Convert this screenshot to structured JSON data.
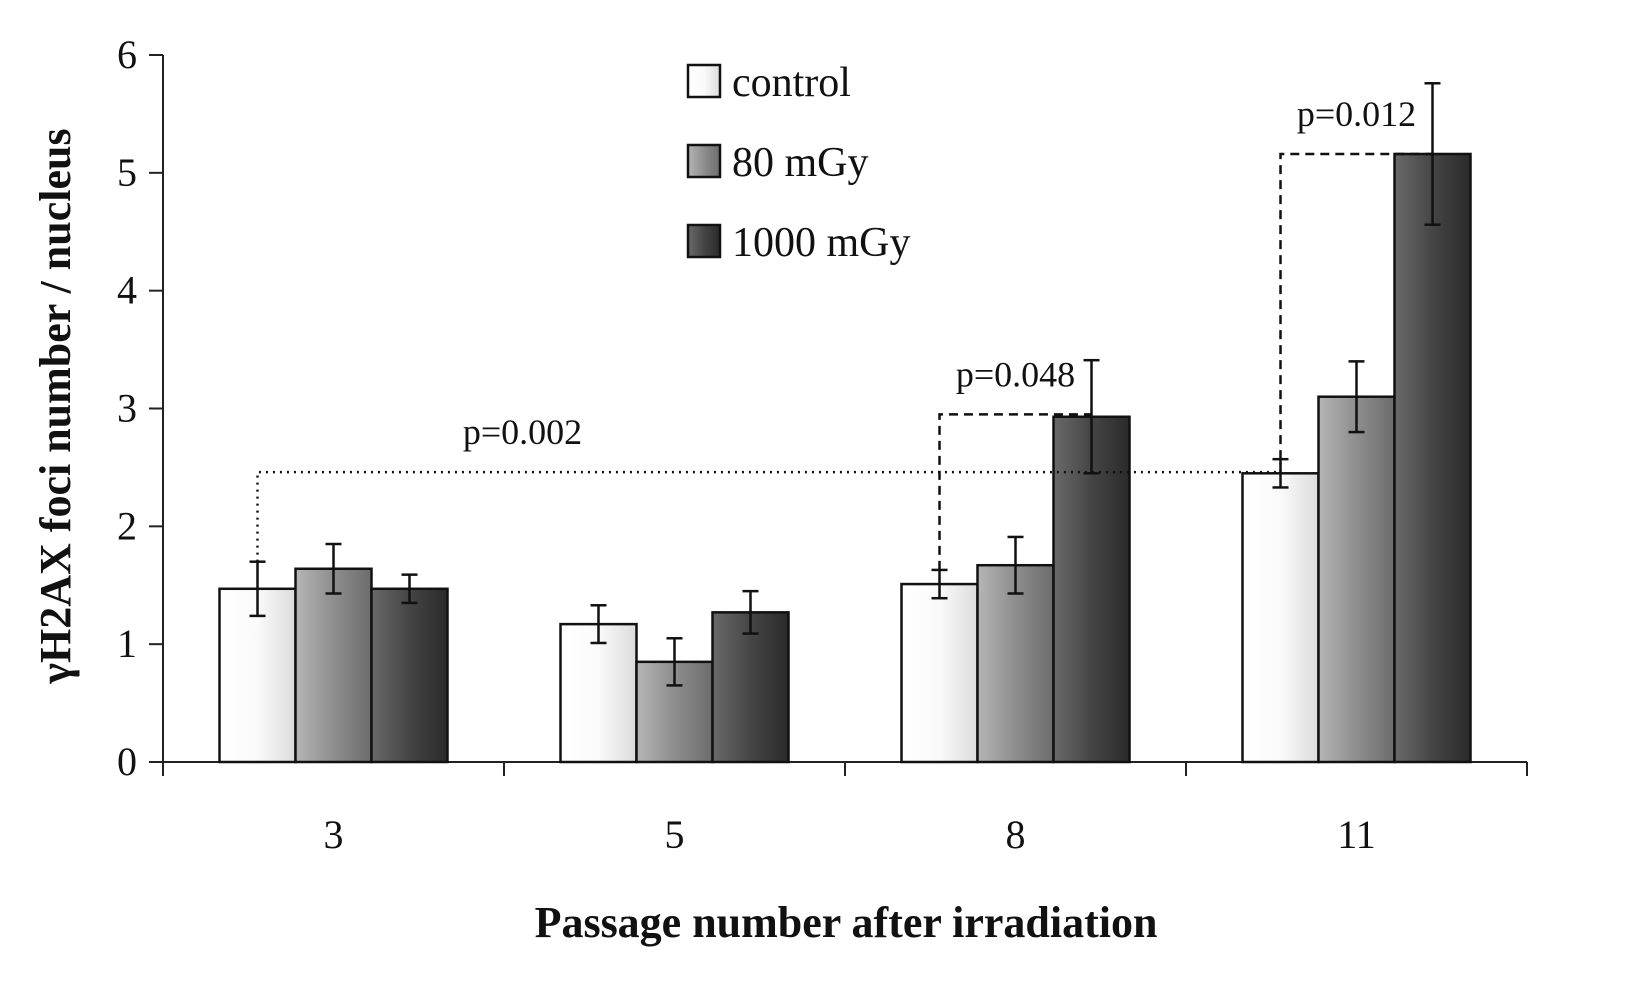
{
  "chart_data": {
    "type": "bar",
    "xlabel": "Passage number after irradiation",
    "ylabel": "γH2AX foci number / nucleus",
    "categories": [
      "3",
      "5",
      "8",
      "11"
    ],
    "ylim": [
      0,
      6
    ],
    "yticks": [
      0,
      1,
      2,
      3,
      4,
      5,
      6
    ],
    "grid": false,
    "legend_position": "top-center",
    "series": [
      {
        "name": "control",
        "color": "#f4f4f4",
        "values": [
          1.47,
          1.17,
          1.51,
          2.45
        ],
        "errors": [
          0.23,
          0.16,
          0.12,
          0.12
        ]
      },
      {
        "name": "80 mGy",
        "color": "#8a8a8a",
        "values": [
          1.64,
          0.85,
          1.67,
          3.1
        ],
        "errors": [
          0.21,
          0.2,
          0.24,
          0.3
        ]
      },
      {
        "name": "1000 mGy",
        "color": "#404040",
        "values": [
          1.47,
          1.27,
          2.93,
          5.16
        ],
        "errors": [
          0.12,
          0.18,
          0.48,
          0.6
        ]
      }
    ],
    "annotations": [
      {
        "text": "p=0.002",
        "from": {
          "category": "3",
          "series": "control"
        },
        "to": {
          "category": "11",
          "series": "control"
        },
        "bracket_y": 2.46,
        "style": "dotted"
      },
      {
        "text": "p=0.048",
        "from": {
          "category": "8",
          "series": "control"
        },
        "to": {
          "category": "8",
          "series": "1000 mGy"
        },
        "bracket_y": 2.95,
        "style": "dashed"
      },
      {
        "text": "p=0.012",
        "from": {
          "category": "11",
          "series": "control"
        },
        "to": {
          "category": "11",
          "series": "1000 mGy"
        },
        "bracket_y": 5.16,
        "style": "dashed"
      }
    ]
  }
}
